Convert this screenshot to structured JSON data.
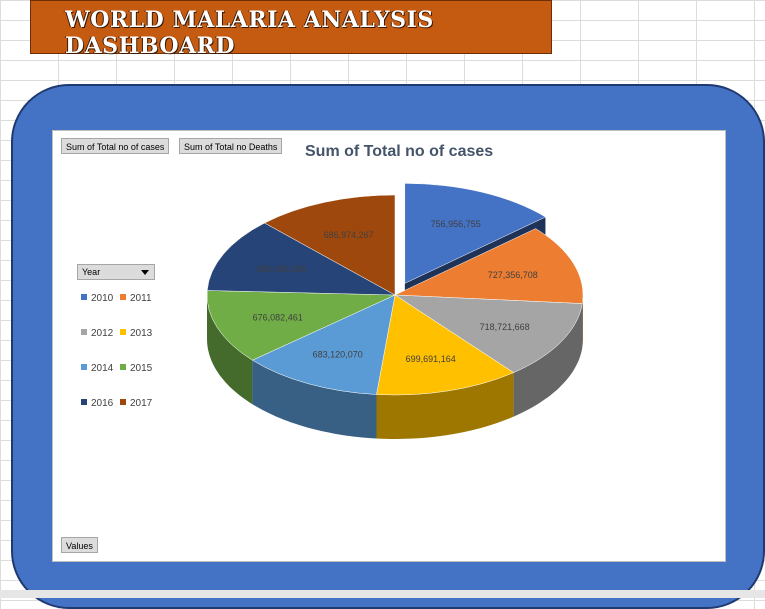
{
  "dashboard_title": "WORLD MALARIA ANALYSIS DASHBOARD",
  "field_buttons": [
    "Sum of Total no of cases",
    "Sum of Total no Deaths"
  ],
  "legend_filter_label": "Year",
  "values_button": "Values",
  "chart_data": {
    "type": "pie",
    "title": "Sum of Total no of cases",
    "categories": [
      "2010",
      "2011",
      "2012",
      "2013",
      "2014",
      "2015",
      "2016",
      "2017"
    ],
    "values": [
      756956755,
      727356708,
      718721668,
      699691164,
      683120070,
      676082461,
      680066365,
      686974267
    ],
    "labels": [
      "756,956,755",
      "727,356,708",
      "718,721,668",
      "699,691,164",
      "683,120,070",
      "676,082,461",
      "680,066,365",
      "686,974,267"
    ],
    "colors": [
      "#4472c4",
      "#ed7d31",
      "#a5a5a5",
      "#ffc000",
      "#5b9bd5",
      "#70ad47",
      "#264478",
      "#9e480e"
    ],
    "legend_position": "left",
    "exploded_slice": "2010"
  }
}
